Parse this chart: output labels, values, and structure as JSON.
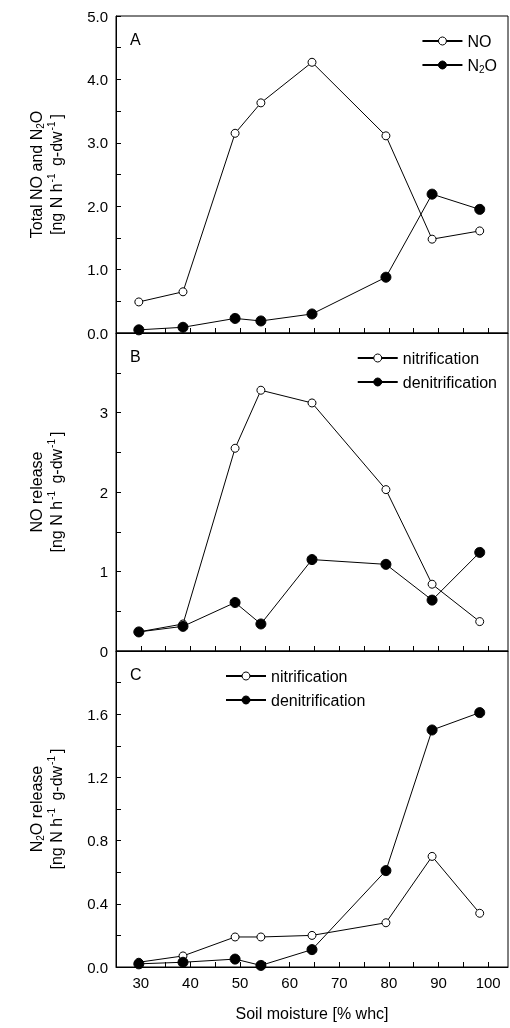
{
  "chart_data": [
    {
      "type": "line",
      "annotations": [
        "A"
      ],
      "ylabel": "Total NO and N$_{2}$O\n[ng N h$^{-1}$ g-dw$^{-1}$]",
      "x": [
        29.6,
        38.5,
        49,
        54.2,
        64.5,
        79.4,
        88.7,
        98.3
      ],
      "xlim": [
        25,
        104
      ],
      "xticks": [
        30,
        {
          "value": 35,
          "label": null
        },
        40,
        {
          "value": 45,
          "label": null
        },
        50,
        {
          "value": 55,
          "label": null
        },
        60,
        {
          "value": 65,
          "label": null
        },
        70,
        {
          "value": 75,
          "label": null
        },
        80,
        {
          "value": 85,
          "label": null
        },
        90,
        {
          "value": 95,
          "label": null
        },
        100
      ],
      "ylim": [
        0,
        5
      ],
      "yticks": [
        {
          "value": 0,
          "label": "0.0"
        },
        {
          "value": 0.5,
          "label": null
        },
        {
          "value": 1,
          "label": "1.0"
        },
        {
          "value": 1.5,
          "label": null
        },
        {
          "value": 2,
          "label": "2.0"
        },
        {
          "value": 2.5,
          "label": null
        },
        {
          "value": 3,
          "label": "3.0"
        },
        {
          "value": 3.5,
          "label": null
        },
        {
          "value": 4,
          "label": "4.0"
        },
        {
          "value": 4.5,
          "label": null
        },
        {
          "value": 5,
          "label": "5.0"
        }
      ],
      "tick_labels": "y",
      "legend": "top right",
      "marker": "circle",
      "line_style": "solid",
      "grid": false,
      "series": [
        {
          "name": "NO",
          "color": "#000000",
          "colors": [
            "#ffffff",
            "#ffffff",
            "#ffffff",
            "#ffffff",
            "#ffffff",
            "#ffffff",
            "#ffffff",
            "#ffffff"
          ],
          "values": [
            0.49,
            0.65,
            3.15,
            3.63,
            4.27,
            3.11,
            1.48,
            1.61
          ]
        },
        {
          "name": "N$_{2}$O",
          "color": "#000000",
          "values": [
            0.05,
            0.09,
            0.23,
            0.19,
            0.3,
            0.88,
            2.19,
            1.95
          ]
        }
      ]
    },
    {
      "type": "line",
      "annotations": [
        "B"
      ],
      "ylabel": "NO release\n[ng N h$^{-1}$ g-dw$^{-1}$]",
      "x": [
        29.6,
        38.5,
        49,
        54.2,
        64.5,
        79.4,
        88.7,
        98.3
      ],
      "xlim": [
        25,
        104
      ],
      "xticks": [
        30,
        {
          "value": 35,
          "label": null
        },
        40,
        {
          "value": 45,
          "label": null
        },
        50,
        {
          "value": 55,
          "label": null
        },
        60,
        {
          "value": 65,
          "label": null
        },
        70,
        {
          "value": 75,
          "label": null
        },
        80,
        {
          "value": 85,
          "label": null
        },
        90,
        {
          "value": 95,
          "label": null
        },
        100
      ],
      "ylim": [
        0,
        4
      ],
      "yticks": [
        0,
        {
          "value": 0.5,
          "label": null
        },
        1,
        {
          "value": 1.5,
          "label": null
        },
        2,
        {
          "value": 2.5,
          "label": null
        },
        3,
        {
          "value": 3.5,
          "label": null
        }
      ],
      "tick_labels": "y",
      "legend": "top right",
      "marker": "circle",
      "line_style": "solid",
      "grid": false,
      "series": [
        {
          "name": "nitrification",
          "color": "#000000",
          "colors": [
            "#ffffff",
            "#ffffff",
            "#ffffff",
            "#ffffff",
            "#ffffff",
            "#ffffff",
            "#ffffff",
            "#ffffff"
          ],
          "values": [
            0.24,
            0.34,
            2.55,
            3.28,
            3.12,
            2.03,
            0.84,
            0.37
          ]
        },
        {
          "name": "denitrification",
          "color": "#000000",
          "values": [
            0.24,
            0.31,
            0.61,
            0.34,
            1.15,
            1.09,
            0.64,
            1.24
          ]
        }
      ]
    },
    {
      "type": "line",
      "annotations": [
        "C"
      ],
      "xlabel": "Soil moisture [% whc]",
      "ylabel": "N$_{2}$O release\n[ng N h$^{-1}$ g-dw$^{-1}$]",
      "x": [
        29.6,
        38.5,
        49,
        54.2,
        64.5,
        79.4,
        88.7,
        98.3
      ],
      "xlim": [
        25,
        104
      ],
      "xticks": [
        30,
        {
          "value": 35,
          "label": null
        },
        40,
        {
          "value": 45,
          "label": null
        },
        50,
        {
          "value": 55,
          "label": null
        },
        60,
        {
          "value": 65,
          "label": null
        },
        70,
        {
          "value": 75,
          "label": null
        },
        80,
        {
          "value": 85,
          "label": null
        },
        90,
        {
          "value": 95,
          "label": null
        },
        100
      ],
      "ylim": [
        0,
        2
      ],
      "yticks": [
        {
          "value": 0,
          "label": "0.0"
        },
        {
          "value": 0.2,
          "label": null
        },
        {
          "value": 0.4,
          "label": "0.4"
        },
        {
          "value": 0.6,
          "label": null
        },
        {
          "value": 0.8,
          "label": "0.8"
        },
        {
          "value": 1.0,
          "label": null
        },
        {
          "value": 1.2,
          "label": "1.2"
        },
        {
          "value": 1.4,
          "label": null
        },
        {
          "value": 1.6,
          "label": "1.6"
        },
        {
          "value": 1.8,
          "label": null
        }
      ],
      "legend": "top",
      "marker": "circle",
      "line_style": "solid",
      "grid": false,
      "series": [
        {
          "name": "nitrification",
          "color": "#000000",
          "colors": [
            "#ffffff",
            "#ffffff",
            "#ffffff",
            "#ffffff",
            "#ffffff",
            "#ffffff",
            "#ffffff",
            "#ffffff"
          ],
          "values": [
            0.03,
            0.07,
            0.19,
            0.19,
            0.2,
            0.28,
            0.7,
            0.34
          ]
        },
        {
          "name": "denitrification",
          "color": "#000000",
          "values": [
            0.02,
            0.03,
            0.05,
            0.01,
            0.11,
            0.61,
            1.5,
            1.61
          ]
        }
      ]
    }
  ]
}
